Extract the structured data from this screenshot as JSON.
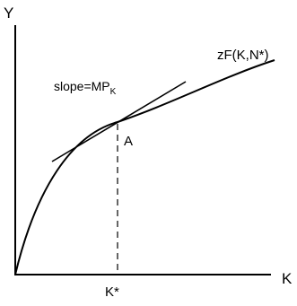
{
  "diagram": {
    "y_axis_label": "Y",
    "x_axis_label": "K",
    "curve_label": "zF(K,N*)",
    "tangent_label": {
      "main": "slope=MP",
      "subscript": "K"
    },
    "point_label": "A",
    "tick_label": "K*"
  }
}
